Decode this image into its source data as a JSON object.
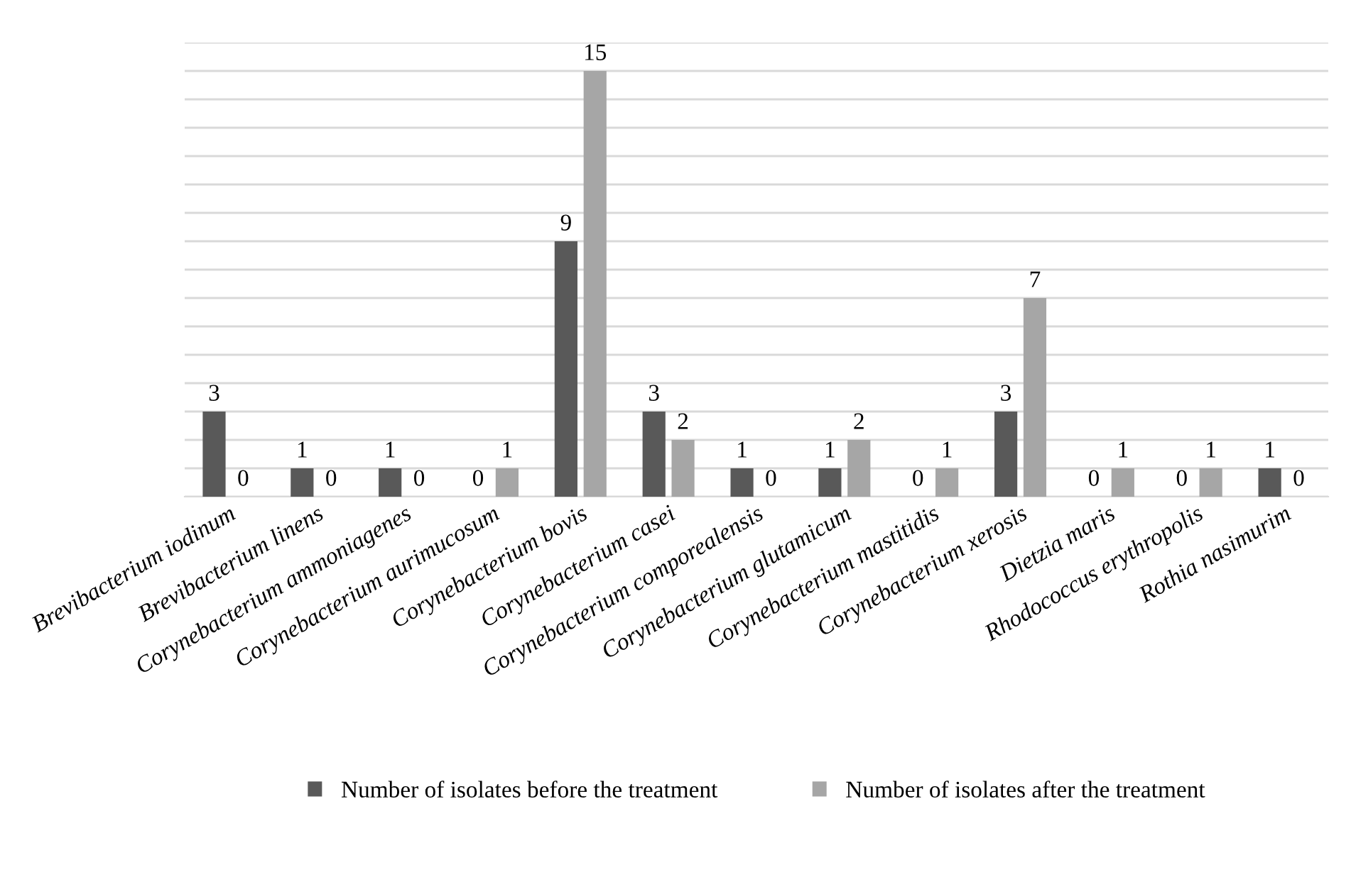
{
  "chart_data": {
    "type": "bar",
    "categories": [
      "Brevibacterium iodinum",
      "Brevibacterium linens",
      "Corynebacterium ammoniagenes",
      "Corynebacterium aurimucosum",
      "Corynebacterium bovis",
      "Corynebacterium casei",
      "Corynebacterium comporealensis",
      "Corynebacterium glutamicum",
      "Corynebacterium mastitidis",
      "Corynebacterium xerosis",
      "Dietzia maris",
      "Rhodococcus erythropolis",
      "Rothia nasimurim"
    ],
    "series": [
      {
        "name": "Number of isolates before the treatment",
        "color": "#595959",
        "values": [
          3,
          1,
          1,
          0,
          9,
          3,
          1,
          1,
          0,
          3,
          0,
          0,
          1
        ]
      },
      {
        "name": "Number of isolates after the treatment",
        "color": "#a6a6a6",
        "values": [
          0,
          0,
          0,
          1,
          15,
          2,
          0,
          2,
          1,
          7,
          1,
          1,
          0
        ]
      }
    ],
    "ylim": [
      0,
      16
    ],
    "yticks": [
      {
        "value": 0,
        "label": null
      },
      {
        "value": 1,
        "label": null
      },
      {
        "value": 2,
        "label": null
      },
      {
        "value": 3,
        "label": null
      },
      {
        "value": 4,
        "label": null
      },
      {
        "value": 5,
        "label": null
      },
      {
        "value": 6,
        "label": null
      },
      {
        "value": 7,
        "label": null
      },
      {
        "value": 8,
        "label": null
      },
      {
        "value": 9,
        "label": null
      },
      {
        "value": 10,
        "label": null
      },
      {
        "value": 11,
        "label": null
      },
      {
        "value": 12,
        "label": null
      },
      {
        "value": 13,
        "label": null
      },
      {
        "value": 14,
        "label": null
      },
      {
        "value": 15,
        "label": null
      },
      {
        "value": 16,
        "label": null
      }
    ],
    "tick_labels": "x",
    "grid": "y",
    "data_labels": true,
    "legend": "bottom"
  }
}
